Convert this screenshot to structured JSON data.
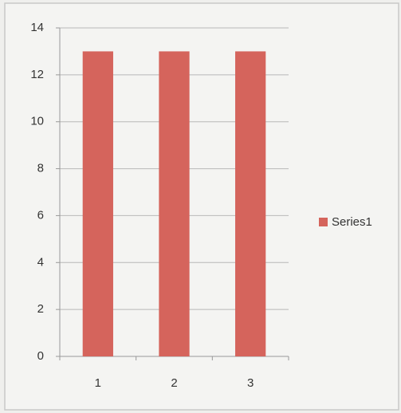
{
  "chart_data": {
    "type": "bar",
    "categories": [
      "1",
      "2",
      "3"
    ],
    "series": [
      {
        "name": "Series1",
        "color": "#d5645c",
        "values": [
          13,
          13,
          13
        ]
      }
    ],
    "ylim": [
      0,
      14
    ],
    "yticks": [
      0,
      2,
      4,
      6,
      8,
      10,
      12,
      14
    ],
    "grid": true,
    "legend": "right"
  }
}
